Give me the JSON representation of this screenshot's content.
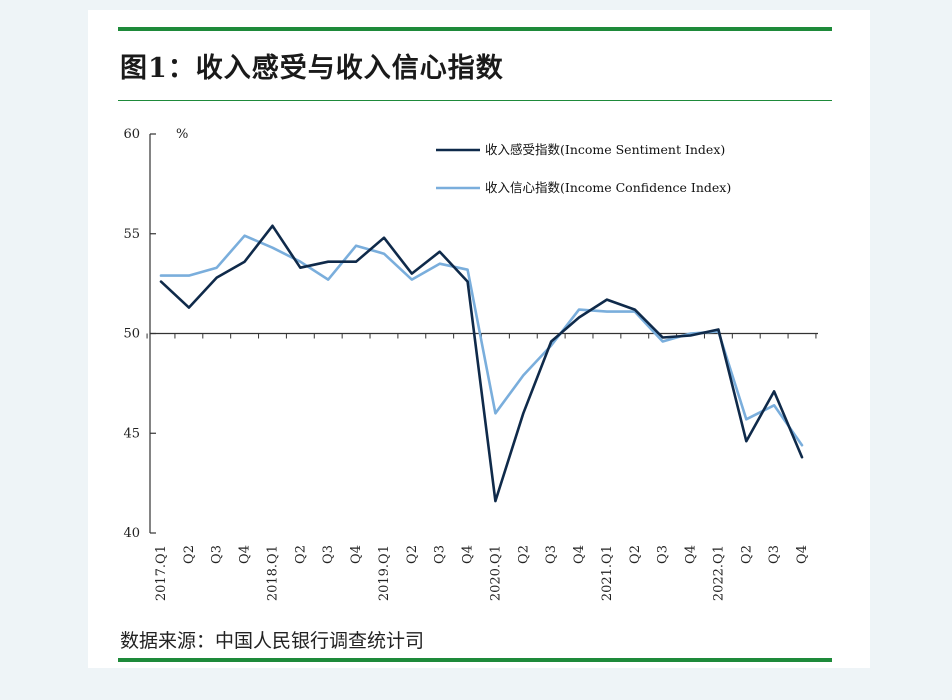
{
  "header": {
    "title": "图1：收入感受与收入信心指数"
  },
  "footer": {
    "source": "数据来源：中国人民银行调查统计司"
  },
  "colors": {
    "accent_rule": "#1e8a3a",
    "sentiment": "#0f2a4a",
    "confidence": "#7aaedc"
  },
  "chart_data": {
    "type": "line",
    "title": "",
    "xlabel": "",
    "ylabel": "",
    "y_unit": "%",
    "ylim": [
      40,
      60
    ],
    "yticks": [
      40,
      45,
      50,
      55,
      60
    ],
    "baseline": 50,
    "grid": false,
    "legend_position": "top-right",
    "categories": [
      "2017.Q1",
      "Q2",
      "Q3",
      "Q4",
      "2018.Q1",
      "Q2",
      "Q3",
      "Q4",
      "2019.Q1",
      "Q2",
      "Q3",
      "Q4",
      "2020.Q1",
      "Q2",
      "Q3",
      "Q4",
      "2021.Q1",
      "Q2",
      "Q3",
      "Q4",
      "2022.Q1",
      "Q2",
      "Q3",
      "Q4"
    ],
    "series": [
      {
        "name": "收入感受指数(Income Sentiment Index)",
        "color": "#0f2a4a",
        "values": [
          52.6,
          51.3,
          52.8,
          53.6,
          55.4,
          53.3,
          53.6,
          53.6,
          54.8,
          53.0,
          54.1,
          52.6,
          41.6,
          46.0,
          49.6,
          50.8,
          51.7,
          51.2,
          49.8,
          49.9,
          50.2,
          44.6,
          47.1,
          43.8
        ]
      },
      {
        "name": "收入信心指数(Income Confidence Index)",
        "color": "#7aaedc",
        "values": [
          52.9,
          52.9,
          53.3,
          54.9,
          54.3,
          53.6,
          52.7,
          54.4,
          54.0,
          52.7,
          53.5,
          53.2,
          46.0,
          47.9,
          49.4,
          51.2,
          51.1,
          51.1,
          49.6,
          50.0,
          50.1,
          45.7,
          46.4,
          44.4
        ]
      }
    ]
  }
}
